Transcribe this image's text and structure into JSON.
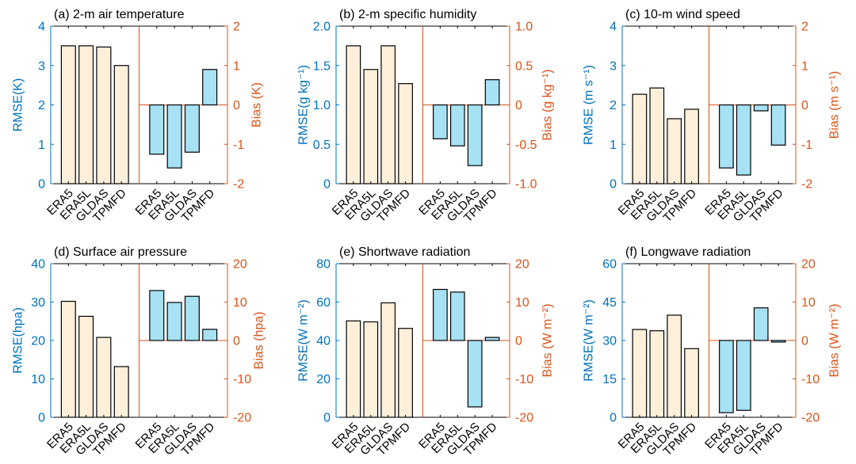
{
  "colors": {
    "left_axis": "#0072BD",
    "right_axis": "#D95319",
    "rmse_fill": "#FDEFD9",
    "bias_fill": "#A6E1F4",
    "bar_edge": "#000000",
    "frame": "#000000"
  },
  "chart_data": [
    {
      "type": "bar",
      "title": "(a) 2-m air temperature",
      "categories": [
        "ERA5",
        "ERA5L",
        "GLDAS",
        "TPMFD"
      ],
      "left_axis": {
        "label": "RMSE(K)",
        "ylim": [
          0,
          4
        ],
        "tick_labels": [
          "0",
          "1",
          "2",
          "3",
          "4"
        ]
      },
      "right_axis": {
        "label": "Bias (K)",
        "ylim": [
          -2,
          2
        ],
        "tick_labels": [
          "-2",
          "-1",
          "0",
          "1",
          "2"
        ]
      },
      "rmse": [
        3.5,
        3.5,
        3.47,
        3.0
      ],
      "bias": [
        -1.25,
        -1.6,
        -1.2,
        0.9
      ]
    },
    {
      "type": "bar",
      "title": "(b) 2-m specific humidity",
      "categories": [
        "ERA5",
        "ERA5L",
        "GLDAS",
        "TPMFD"
      ],
      "left_axis": {
        "label": "RMSE(g kg⁻¹)",
        "ylim": [
          0,
          2
        ],
        "tick_labels": [
          "0",
          "0.5",
          "1.0",
          "1.5",
          "2.0"
        ]
      },
      "right_axis": {
        "label": "Bias (g kg⁻¹)",
        "ylim": [
          -1,
          1
        ],
        "tick_labels": [
          "-1.0",
          "-0.5",
          "0",
          "0.5",
          "1.0"
        ]
      },
      "rmse": [
        1.75,
        1.45,
        1.75,
        1.27
      ],
      "bias": [
        -0.43,
        -0.52,
        -0.77,
        0.32
      ]
    },
    {
      "type": "bar",
      "title": "(c) 10-m wind speed",
      "categories": [
        "ERA5",
        "ERA5L",
        "GLDAS",
        "TPMFD"
      ],
      "left_axis": {
        "label": "RMSE (m s⁻¹)",
        "ylim": [
          0,
          4
        ],
        "tick_labels": [
          "0",
          "1",
          "2",
          "3",
          "4"
        ]
      },
      "right_axis": {
        "label": "Bias (m s⁻¹)",
        "ylim": [
          -2,
          2
        ],
        "tick_labels": [
          "-2",
          "-1",
          "0",
          "1",
          "2"
        ]
      },
      "rmse": [
        2.27,
        2.43,
        1.65,
        1.89
      ],
      "bias": [
        -1.6,
        -1.78,
        -0.15,
        -1.02
      ]
    },
    {
      "type": "bar",
      "title": "(d) Surface air pressure",
      "categories": [
        "ERA5",
        "ERA5L",
        "GLDAS",
        "TPMFD"
      ],
      "left_axis": {
        "label": "RMSE(hpa)",
        "ylim": [
          0,
          40
        ],
        "tick_labels": [
          "0",
          "10",
          "20",
          "30",
          "40"
        ]
      },
      "right_axis": {
        "label": "Bias (hpa)",
        "ylim": [
          -20,
          20
        ],
        "tick_labels": [
          "-20",
          "-10",
          "0",
          "10",
          "20"
        ]
      },
      "rmse": [
        30.2,
        26.3,
        20.8,
        13.2
      ],
      "bias": [
        13.0,
        9.9,
        11.5,
        2.9
      ]
    },
    {
      "type": "bar",
      "title": "(e) Shortwave radiation",
      "categories": [
        "ERA5",
        "ERA5L",
        "GLDAS",
        "TPMFD"
      ],
      "left_axis": {
        "label": "RMSE(W m⁻²)",
        "ylim": [
          0,
          80
        ],
        "tick_labels": [
          "0",
          "20",
          "40",
          "60",
          "80"
        ]
      },
      "right_axis": {
        "label": "Bias (W m⁻²)",
        "ylim": [
          -20,
          20
        ],
        "tick_labels": [
          "-20",
          "-10",
          "0",
          "10",
          "20"
        ]
      },
      "rmse": [
        50.2,
        49.7,
        59.6,
        46.3
      ],
      "bias": [
        13.3,
        12.6,
        -17.3,
        0.8
      ]
    },
    {
      "type": "bar",
      "title": "(f) Longwave radiation",
      "categories": [
        "ERA5",
        "ERA5L",
        "GLDAS",
        "TPMFD"
      ],
      "left_axis": {
        "label": "RMSE(W m⁻²)",
        "ylim": [
          0,
          60
        ],
        "tick_labels": [
          "0",
          "15",
          "30",
          "45",
          "60"
        ]
      },
      "right_axis": {
        "label": "Bias (W m⁻²)",
        "ylim": [
          -20,
          20
        ],
        "tick_labels": [
          "-20",
          "-10",
          "0",
          "10",
          "20"
        ]
      },
      "rmse": [
        34.3,
        33.8,
        39.9,
        26.8
      ],
      "bias": [
        -18.8,
        -18.2,
        8.5,
        -0.4
      ]
    }
  ]
}
